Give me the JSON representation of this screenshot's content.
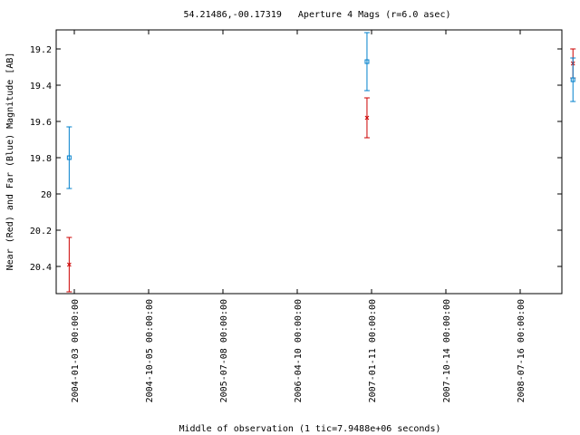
{
  "chart_data": {
    "type": "scatter",
    "title": "54.21486,-00.17319   Aperture 4 Mags (r=6.0 asec)",
    "xlabel": "Middle of observation (1 tic=7.9488e+06 seconds)",
    "ylabel": "Near (Red) and Far (Blue) Magnitude [AB]",
    "x_ticks": [
      "2004-01-03 00:00:00",
      "2004-10-05 00:00:00",
      "2005-07-08 00:00:00",
      "2006-04-10 00:00:00",
      "2007-01-11 00:00:00",
      "2007-10-14 00:00:00",
      "2008-07-16 00:00:00"
    ],
    "y_ticks": [
      "19.2",
      "19.4",
      "19.6",
      "19.8",
      "20",
      "20.2",
      "20.4"
    ],
    "y_inverted": true,
    "grid": false,
    "series": [
      {
        "name": "Near (Red)",
        "color": "#cc0000",
        "marker": "x",
        "points": [
          {
            "x": "2003-12-15",
            "y": 20.39,
            "err": 0.15
          },
          {
            "x": "2006-12-25",
            "y": 19.58,
            "err": 0.11
          },
          {
            "x": "2009-01-28",
            "y": 19.28,
            "err": 0.08
          }
        ]
      },
      {
        "name": "Far (Blue)",
        "color": "#0080cc",
        "marker": "square",
        "points": [
          {
            "x": "2003-12-15",
            "y": 19.8,
            "err": 0.17
          },
          {
            "x": "2006-12-25",
            "y": 19.27,
            "err": 0.16
          },
          {
            "x": "2009-01-28",
            "y": 19.37,
            "err": 0.12
          }
        ]
      }
    ]
  }
}
